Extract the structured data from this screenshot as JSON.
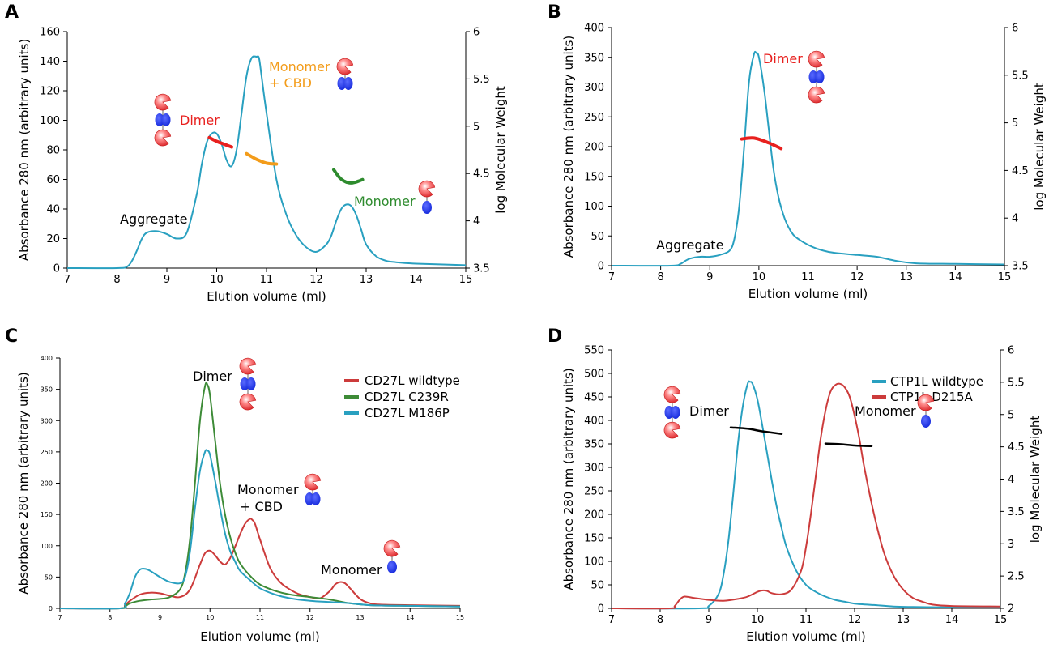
{
  "chart_data": [
    {
      "type": "line",
      "panel_label": "A",
      "xlabel": "Elution volume (ml)",
      "ylabel": "Absorbance 280 nm (arbitrary units)",
      "y2label": "log Molecular Weight",
      "xlim": [
        7,
        15
      ],
      "ylim": [
        0,
        160
      ],
      "y2lim": [
        3.5,
        6
      ],
      "xticks": [
        "7",
        "8",
        "9",
        "10",
        "11",
        "12",
        "13",
        "14",
        "15"
      ],
      "yticks": [
        "0",
        "20",
        "40",
        "60",
        "80",
        "100",
        "120",
        "140",
        "160"
      ],
      "y2ticks": [
        "3.5",
        "4",
        "4.5",
        "5",
        "5.5",
        "6"
      ],
      "grid": false,
      "series": [
        {
          "color": "#29a0c0",
          "x": [
            7,
            8,
            8.2,
            8.3,
            8.4,
            8.5,
            8.6,
            8.8,
            9.0,
            9.2,
            9.4,
            9.6,
            9.7,
            9.8,
            9.9,
            10.0,
            10.1,
            10.2,
            10.3,
            10.4,
            10.5,
            10.6,
            10.7,
            10.8,
            10.85,
            10.9,
            11.0,
            11.2,
            11.4,
            11.6,
            11.8,
            12.0,
            12.2,
            12.3,
            12.4,
            12.5,
            12.6,
            12.7,
            12.8,
            12.9,
            13.0,
            13.2,
            13.4,
            13.6,
            14.0,
            15.0
          ],
          "y": [
            0,
            0,
            1,
            5,
            12,
            20,
            24,
            25,
            23,
            20,
            24,
            50,
            70,
            85,
            91,
            91,
            84,
            73,
            69,
            80,
            105,
            130,
            142,
            143,
            142,
            130,
            105,
            60,
            36,
            22,
            14,
            11,
            16,
            22,
            32,
            40,
            43,
            42,
            36,
            26,
            16,
            8,
            5,
            4,
            3,
            2
          ]
        }
      ],
      "mw_overlays": [
        {
          "label": "Dimer",
          "color": "#e8201e",
          "x": [
            9.85,
            10.0,
            10.15,
            10.3
          ],
          "logmw": [
            4.88,
            4.84,
            4.81,
            4.78
          ]
        },
        {
          "label": "Monomer + CBD",
          "color": "#f39c1a",
          "x": [
            10.6,
            10.8,
            11.0,
            11.2
          ],
          "logmw": [
            4.71,
            4.65,
            4.61,
            4.6
          ]
        },
        {
          "label": "Monomer",
          "color": "#2e8b2e",
          "x": [
            12.35,
            12.5,
            12.7,
            12.95
          ],
          "logmw": [
            4.54,
            4.44,
            4.4,
            4.44
          ]
        }
      ],
      "annotations": [
        {
          "text": "Aggregate",
          "color": "#000000"
        },
        {
          "text": "Dimer",
          "color": "#e8201e"
        },
        {
          "text": "Monomer",
          "color": "#f39c1a"
        },
        {
          "text": "+ CBD",
          "color": "#f39c1a"
        },
        {
          "text": "Monomer",
          "color": "#2e8b2e"
        }
      ]
    },
    {
      "type": "line",
      "panel_label": "B",
      "xlabel": "Elution volume (ml)",
      "ylabel": "Absorbance 280 nm (arbitrary units)",
      "y2label": "log Molecular Weight",
      "xlim": [
        7,
        15
      ],
      "ylim": [
        0,
        400
      ],
      "y2lim": [
        3.5,
        6
      ],
      "xticks": [
        "7",
        "8",
        "9",
        "10",
        "11",
        "12",
        "13",
        "14",
        "15"
      ],
      "yticks": [
        "0",
        "50",
        "100",
        "150",
        "200",
        "250",
        "300",
        "350",
        "400"
      ],
      "y2ticks": [
        "3.5",
        "4",
        "4.5",
        "5",
        "5.5",
        "6"
      ],
      "grid": false,
      "series": [
        {
          "color": "#29a0c0",
          "x": [
            7,
            8.2,
            8.4,
            8.5,
            8.6,
            8.8,
            9.0,
            9.2,
            9.4,
            9.5,
            9.6,
            9.7,
            9.8,
            9.9,
            9.95,
            10.0,
            10.1,
            10.2,
            10.3,
            10.4,
            10.5,
            10.6,
            10.7,
            10.8,
            11.0,
            11.2,
            11.5,
            12.0,
            12.4,
            12.8,
            13.2,
            14.0,
            15.0
          ],
          "y": [
            0,
            0,
            3,
            8,
            12,
            15,
            15,
            18,
            25,
            45,
            100,
            200,
            310,
            355,
            357,
            350,
            300,
            230,
            160,
            115,
            85,
            65,
            52,
            45,
            35,
            28,
            22,
            18,
            15,
            8,
            4,
            3,
            2
          ]
        }
      ],
      "mw_overlays": [
        {
          "label": "Dimer",
          "color": "#e8201e",
          "x": [
            9.65,
            9.9,
            10.2,
            10.45
          ],
          "logmw": [
            4.83,
            4.84,
            4.79,
            4.73
          ]
        }
      ],
      "annotations": [
        {
          "text": "Aggregate",
          "color": "#000000"
        },
        {
          "text": "Dimer",
          "color": "#e8201e"
        }
      ]
    },
    {
      "type": "line",
      "panel_label": "C",
      "xlabel": "Elution volume (ml)",
      "ylabel": "Absorbance 280 nm (arbitrary units)",
      "xlim": [
        7,
        15
      ],
      "ylim": [
        0,
        400
      ],
      "xticks": [
        "7",
        "8",
        "9",
        "10",
        "11",
        "12",
        "13",
        "14",
        "15"
      ],
      "yticks": [
        "0",
        "50",
        "100",
        "150",
        "200",
        "250",
        "300",
        "350",
        "400"
      ],
      "grid": false,
      "legend": "top-right",
      "series": [
        {
          "name": "CD27L wildtype",
          "color": "#cc3b3b",
          "x": [
            7,
            8.2,
            8.3,
            8.4,
            8.6,
            8.8,
            9.0,
            9.2,
            9.4,
            9.6,
            9.8,
            9.9,
            10.0,
            10.1,
            10.2,
            10.3,
            10.4,
            10.5,
            10.6,
            10.7,
            10.8,
            10.85,
            10.9,
            11.0,
            11.2,
            11.4,
            11.6,
            11.8,
            12.0,
            12.2,
            12.4,
            12.5,
            12.6,
            12.7,
            12.8,
            13.0,
            13.2,
            13.4,
            14.0,
            15.0
          ],
          "y": [
            0,
            0,
            5,
            12,
            22,
            25,
            24,
            20,
            18,
            30,
            70,
            88,
            92,
            85,
            75,
            70,
            80,
            98,
            118,
            135,
            143,
            141,
            135,
            110,
            65,
            42,
            30,
            22,
            18,
            16,
            28,
            38,
            42,
            40,
            32,
            15,
            8,
            6,
            5,
            4
          ]
        },
        {
          "name": "CD27L C239R",
          "color": "#3d8b37",
          "x": [
            7,
            8.2,
            8.3,
            8.4,
            8.6,
            8.8,
            9.0,
            9.2,
            9.4,
            9.5,
            9.6,
            9.7,
            9.8,
            9.9,
            9.95,
            10.0,
            10.1,
            10.2,
            10.3,
            10.4,
            10.5,
            10.6,
            10.8,
            11.0,
            11.3,
            11.6,
            12.0,
            12.4,
            12.8,
            13.2,
            14.0,
            15.0
          ],
          "y": [
            0,
            0,
            3,
            8,
            12,
            14,
            15,
            18,
            30,
            55,
            110,
            200,
            300,
            355,
            357,
            340,
            270,
            200,
            150,
            115,
            90,
            72,
            52,
            38,
            28,
            22,
            18,
            14,
            8,
            5,
            4,
            3
          ]
        },
        {
          "name": "CD27L M186P",
          "color": "#29a0c0",
          "x": [
            7,
            8.2,
            8.3,
            8.4,
            8.5,
            8.6,
            8.7,
            8.8,
            9.0,
            9.2,
            9.4,
            9.5,
            9.6,
            9.7,
            9.8,
            9.9,
            9.95,
            10.0,
            10.1,
            10.2,
            10.3,
            10.4,
            10.5,
            10.6,
            10.8,
            11.0,
            11.3,
            11.6,
            12.0,
            12.4,
            12.8,
            13.2,
            14.0,
            15.0
          ],
          "y": [
            0,
            0,
            8,
            25,
            50,
            62,
            63,
            60,
            50,
            42,
            40,
            50,
            90,
            160,
            220,
            250,
            252,
            245,
            205,
            160,
            120,
            92,
            75,
            60,
            45,
            32,
            22,
            16,
            12,
            10,
            8,
            5,
            4,
            3
          ]
        }
      ],
      "annotations": [
        {
          "text": "Dimer",
          "color": "#000000"
        },
        {
          "text": "Monomer",
          "color": "#000000"
        },
        {
          "text": "+ CBD",
          "color": "#000000"
        },
        {
          "text": "Monomer",
          "color": "#000000"
        }
      ]
    },
    {
      "type": "line",
      "panel_label": "D",
      "xlabel": "Elution volume (ml)",
      "ylabel": "Absorbance 280 nm (arbitrary units)",
      "y2label": "log Molecular Weight",
      "xlim": [
        7,
        15
      ],
      "ylim": [
        0,
        550
      ],
      "y2lim": [
        2,
        6
      ],
      "xticks": [
        "7",
        "8",
        "9",
        "10",
        "11",
        "12",
        "13",
        "14",
        "15"
      ],
      "yticks": [
        "0",
        "50",
        "100",
        "150",
        "200",
        "250",
        "300",
        "350",
        "400",
        "450",
        "500",
        "550"
      ],
      "y2ticks": [
        "2",
        "2.5",
        "3",
        "3.5",
        "4",
        "4.5",
        "5",
        "5.5",
        "6"
      ],
      "grid": false,
      "legend": "top-right",
      "series": [
        {
          "name": "CTP1L wildtype",
          "color": "#29a0c0",
          "x": [
            7,
            8.8,
            9.0,
            9.2,
            9.3,
            9.4,
            9.5,
            9.6,
            9.7,
            9.8,
            9.85,
            9.9,
            10.0,
            10.1,
            10.2,
            10.3,
            10.4,
            10.5,
            10.6,
            10.8,
            11.0,
            11.2,
            11.4,
            11.6,
            11.8,
            12.0,
            12.4,
            12.8,
            13.2,
            14.0,
            15.0
          ],
          "y": [
            0,
            0,
            5,
            30,
            70,
            140,
            240,
            350,
            430,
            478,
            482,
            478,
            445,
            390,
            330,
            270,
            215,
            170,
            130,
            80,
            50,
            35,
            25,
            18,
            14,
            10,
            7,
            4,
            3,
            2,
            2
          ]
        },
        {
          "name": "CTP1L D215A",
          "color": "#cc3b3b",
          "x": [
            7,
            8.2,
            8.3,
            8.4,
            8.5,
            8.7,
            9.0,
            9.3,
            9.6,
            9.8,
            10.0,
            10.1,
            10.2,
            10.3,
            10.5,
            10.7,
            10.9,
            11.0,
            11.1,
            11.2,
            11.3,
            11.4,
            11.5,
            11.6,
            11.7,
            11.8,
            11.9,
            12.0,
            12.1,
            12.2,
            12.4,
            12.6,
            12.8,
            13.0,
            13.2,
            13.4,
            13.6,
            14.0,
            15.0
          ],
          "y": [
            0,
            0,
            5,
            18,
            25,
            22,
            18,
            16,
            20,
            25,
            35,
            38,
            37,
            32,
            30,
            40,
            80,
            130,
            200,
            280,
            360,
            420,
            460,
            475,
            478,
            470,
            450,
            410,
            360,
            300,
            200,
            120,
            70,
            40,
            22,
            14,
            8,
            5,
            4
          ]
        }
      ],
      "mw_overlays": [
        {
          "label": "Dimer",
          "color": "#000000",
          "x": [
            9.45,
            9.8,
            10.1,
            10.5
          ],
          "logmw": [
            4.8,
            4.78,
            4.74,
            4.7
          ]
        },
        {
          "label": "Monomer",
          "color": "#000000",
          "x": [
            11.4,
            11.7,
            12.0,
            12.35
          ],
          "logmw": [
            4.55,
            4.54,
            4.52,
            4.51
          ]
        }
      ],
      "annotations": [
        {
          "text": "Dimer",
          "color": "#000000"
        },
        {
          "text": "Monomer",
          "color": "#000000"
        }
      ]
    }
  ]
}
